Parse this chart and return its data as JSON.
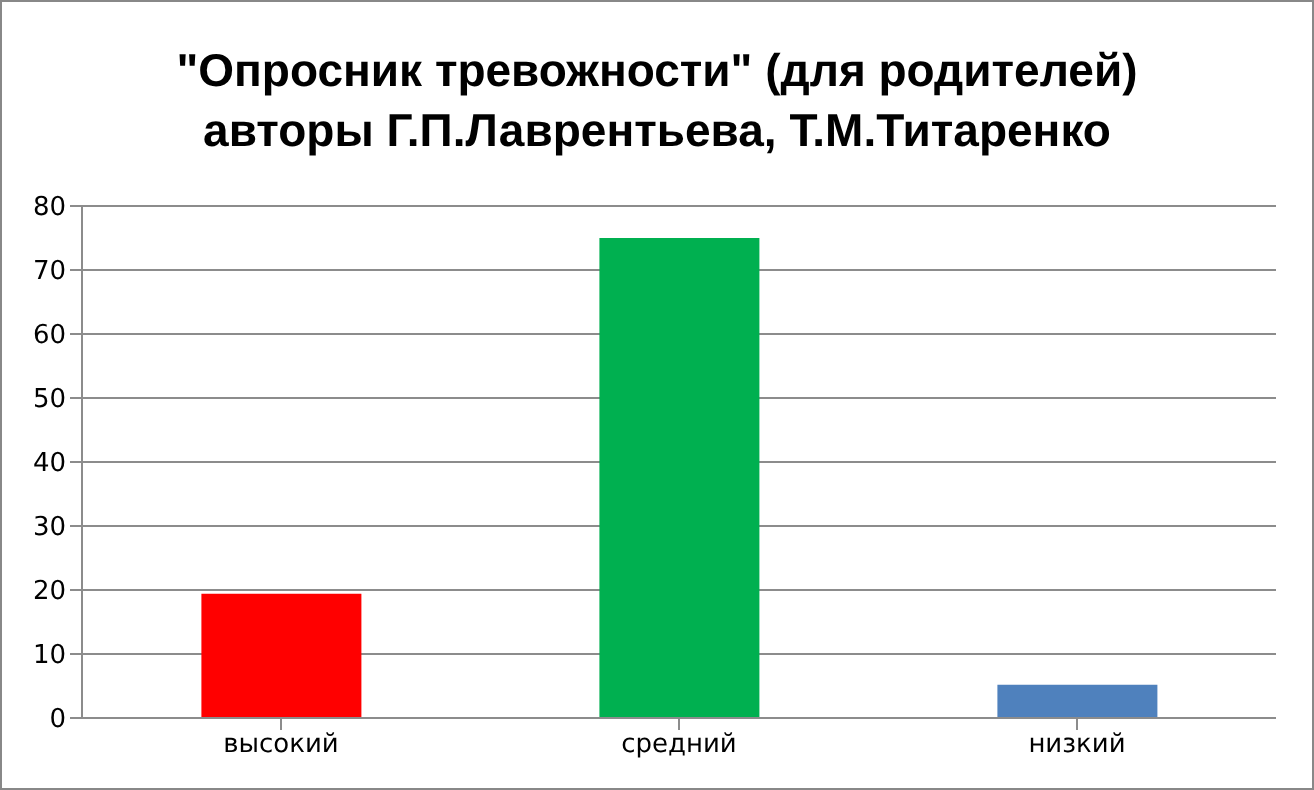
{
  "chart_data": {
    "type": "bar",
    "title": "\"Опросник тревожности\" (для родителей)\nавторы Г.П.Лаврентьева, Т.М.Титаренко",
    "categories": [
      "высокий",
      "средний",
      "низкий"
    ],
    "values": [
      19.4,
      75,
      5.2
    ],
    "colors": [
      "#ff0000",
      "#00b050",
      "#4f81bd"
    ],
    "ylim": [
      0,
      80
    ],
    "yticks": [
      0,
      10,
      20,
      30,
      40,
      50,
      60,
      70,
      80
    ],
    "grid": "y"
  }
}
